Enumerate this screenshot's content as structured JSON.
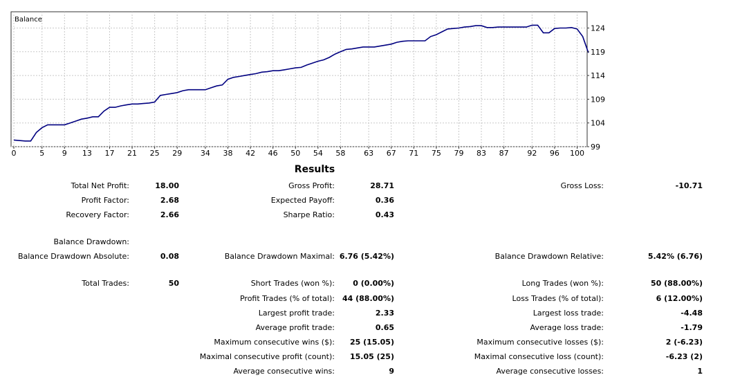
{
  "chart_data": {
    "type": "line",
    "title": "Balance",
    "series": [
      {
        "name": "",
        "color": "#000080",
        "points": [
          [
            0,
            100.4
          ],
          [
            2,
            100.2
          ],
          [
            3,
            100.2
          ],
          [
            4,
            102.0
          ],
          [
            5,
            103.0
          ],
          [
            6,
            103.6
          ],
          [
            7,
            103.6
          ],
          [
            8,
            103.6
          ],
          [
            9,
            103.6
          ],
          [
            10,
            104.0
          ],
          [
            11,
            104.4
          ],
          [
            12,
            104.8
          ],
          [
            13,
            105.0
          ],
          [
            14,
            105.3
          ],
          [
            15,
            105.3
          ],
          [
            16,
            106.5
          ],
          [
            17,
            107.3
          ],
          [
            18,
            107.3
          ],
          [
            19,
            107.6
          ],
          [
            20,
            107.8
          ],
          [
            21,
            108.0
          ],
          [
            22,
            108.0
          ],
          [
            23,
            108.1
          ],
          [
            24,
            108.2
          ],
          [
            25,
            108.4
          ],
          [
            26,
            109.8
          ],
          [
            27,
            110.0
          ],
          [
            28,
            110.2
          ],
          [
            29,
            110.4
          ],
          [
            30,
            110.8
          ],
          [
            31,
            111.0
          ],
          [
            32,
            111.0
          ],
          [
            33,
            111.0
          ],
          [
            34,
            111.0
          ],
          [
            35,
            111.4
          ],
          [
            36,
            111.8
          ],
          [
            37,
            112.0
          ],
          [
            38,
            113.2
          ],
          [
            39,
            113.6
          ],
          [
            40,
            113.8
          ],
          [
            41,
            114.0
          ],
          [
            42,
            114.2
          ],
          [
            43,
            114.4
          ],
          [
            44,
            114.7
          ],
          [
            45,
            114.8
          ],
          [
            46,
            115.0
          ],
          [
            47,
            115.0
          ],
          [
            48,
            115.2
          ],
          [
            49,
            115.4
          ],
          [
            50,
            115.6
          ],
          [
            51,
            115.7
          ],
          [
            52,
            116.2
          ],
          [
            53,
            116.6
          ],
          [
            54,
            117.0
          ],
          [
            55,
            117.3
          ],
          [
            56,
            117.8
          ],
          [
            57,
            118.5
          ],
          [
            58,
            119.0
          ],
          [
            59,
            119.5
          ],
          [
            60,
            119.6
          ],
          [
            61,
            119.8
          ],
          [
            62,
            120.0
          ],
          [
            63,
            120.0
          ],
          [
            64,
            120.0
          ],
          [
            65,
            120.2
          ],
          [
            66,
            120.4
          ],
          [
            67,
            120.6
          ],
          [
            68,
            121.0
          ],
          [
            69,
            121.2
          ],
          [
            70,
            121.3
          ],
          [
            71,
            121.3
          ],
          [
            72,
            121.3
          ],
          [
            73,
            121.3
          ],
          [
            74,
            122.2
          ],
          [
            75,
            122.6
          ],
          [
            76,
            123.2
          ],
          [
            77,
            123.8
          ],
          [
            78,
            123.9
          ],
          [
            79,
            124.0
          ],
          [
            80,
            124.2
          ],
          [
            81,
            124.3
          ],
          [
            82,
            124.5
          ],
          [
            83,
            124.5
          ],
          [
            84,
            124.1
          ],
          [
            85,
            124.1
          ],
          [
            86,
            124.2
          ],
          [
            87,
            124.2
          ],
          [
            88,
            124.2
          ],
          [
            89,
            124.2
          ],
          [
            90,
            124.2
          ],
          [
            91,
            124.2
          ],
          [
            92,
            124.6
          ],
          [
            93,
            124.6
          ],
          [
            94,
            123.0
          ],
          [
            95,
            123.0
          ],
          [
            96,
            123.9
          ],
          [
            97,
            124.0
          ],
          [
            98,
            124.0
          ],
          [
            99,
            124.1
          ],
          [
            100,
            123.8
          ],
          [
            101,
            122.2
          ],
          [
            102,
            118.8
          ]
        ]
      }
    ],
    "x_ticks": [
      "0",
      "5",
      "9",
      "13",
      "17",
      "21",
      "25",
      "29",
      "34",
      "38",
      "42",
      "46",
      "50",
      "54",
      "58",
      "63",
      "67",
      "71",
      "75",
      "79",
      "83",
      "87",
      "92",
      "96",
      "100"
    ],
    "x_tick_values": [
      0,
      5,
      9,
      13,
      17,
      21,
      25,
      29,
      34,
      38,
      42,
      46,
      50,
      54,
      58,
      63,
      67,
      71,
      75,
      79,
      83,
      87,
      92,
      96,
      100
    ],
    "y_ticks": [
      "99",
      "104",
      "109",
      "114",
      "119",
      "124"
    ],
    "y_tick_values": [
      99,
      104,
      109,
      114,
      119,
      124
    ],
    "xlim": [
      0,
      102
    ],
    "ylim": [
      99,
      124.6
    ],
    "grid": true,
    "y_axis_side": "right"
  },
  "results": {
    "title": "Results",
    "rows": [
      [
        {
          "label": "Total Net Profit:",
          "value": "18.00"
        },
        {
          "label": "Gross Profit:",
          "value": "28.71"
        },
        {
          "label": "Gross Loss:",
          "value": "-10.71"
        }
      ],
      [
        {
          "label": "Profit Factor:",
          "value": "2.68"
        },
        {
          "label": "Expected Payoff:",
          "value": "0.36"
        },
        null
      ],
      [
        {
          "label": "Recovery Factor:",
          "value": "2.66"
        },
        {
          "label": "Sharpe Ratio:",
          "value": "0.43"
        },
        null
      ],
      [
        {
          "label": "Balance Drawdown:",
          "value": ""
        },
        null,
        null
      ],
      [
        {
          "label": "Balance Drawdown Absolute:",
          "value": "0.08"
        },
        {
          "label": "Balance Drawdown Maximal:",
          "value": "6.76 (5.42%)"
        },
        {
          "label": "Balance Drawdown Relative:",
          "value": "5.42% (6.76)"
        }
      ],
      [
        {
          "label": "Total Trades:",
          "value": "50"
        },
        {
          "label": "Short Trades (won %):",
          "value": "0 (0.00%)"
        },
        {
          "label": "Long Trades (won %):",
          "value": "50 (88.00%)"
        }
      ],
      [
        null,
        {
          "label": "Profit Trades (% of total):",
          "value": "44 (88.00%)"
        },
        {
          "label": "Loss Trades (% of total):",
          "value": "6 (12.00%)"
        }
      ],
      [
        null,
        {
          "label": "Largest profit trade:",
          "value": "2.33"
        },
        {
          "label": "Largest loss trade:",
          "value": "-4.48"
        }
      ],
      [
        null,
        {
          "label": "Average profit trade:",
          "value": "0.65"
        },
        {
          "label": "Average loss trade:",
          "value": "-1.79"
        }
      ],
      [
        null,
        {
          "label": "Maximum consecutive wins ($):",
          "value": "25 (15.05)"
        },
        {
          "label": "Maximum consecutive losses ($):",
          "value": "2 (-6.23)"
        }
      ],
      [
        null,
        {
          "label": "Maximal consecutive profit (count):",
          "value": "15.05 (25)"
        },
        {
          "label": "Maximal consecutive loss (count):",
          "value": "-6.23 (2)"
        }
      ],
      [
        null,
        {
          "label": "Average consecutive wins:",
          "value": "9"
        },
        {
          "label": "Average consecutive losses:",
          "value": "1"
        }
      ]
    ]
  }
}
